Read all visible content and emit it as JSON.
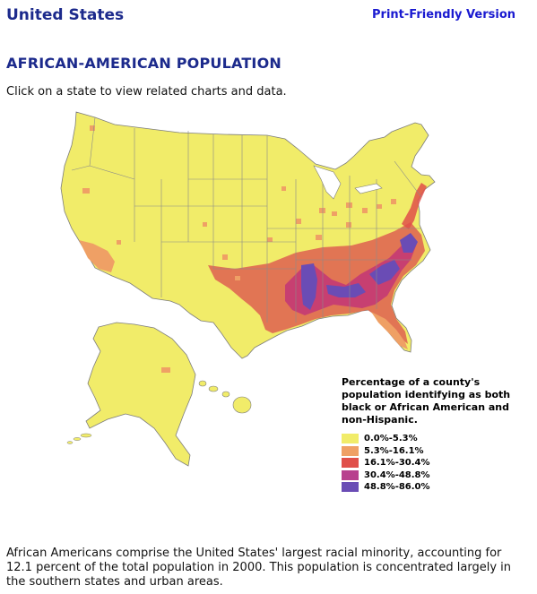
{
  "header": {
    "site_title": "United States",
    "print_link": "Print-Friendly Version"
  },
  "page": {
    "heading": "AFRICAN-AMERICAN POPULATION",
    "instruction": "Click on a state to view related charts and data."
  },
  "map": {
    "land_color": "#f1ec69",
    "border_color": "#7d7d7d",
    "regions": [
      {
        "name": "us-lower-48",
        "color": "#f1ec69"
      },
      {
        "name": "alaska",
        "color": "#f1ec69"
      },
      {
        "name": "hawaii",
        "color": "#f1ec69"
      },
      {
        "name": "southern-belt",
        "color": "#e06a52"
      },
      {
        "name": "black-belt",
        "color": "#c43a74"
      },
      {
        "name": "mississippi-delta",
        "color": "#6a4cb5"
      },
      {
        "name": "southern-california",
        "color": "#efa065"
      }
    ]
  },
  "legend": {
    "title": "Percentage of a county's population identifying as both black or African American and non-Hispanic.",
    "items": [
      {
        "label": "0.0%-5.3%",
        "color": "#f1ec69"
      },
      {
        "label": "5.3%-16.1%",
        "color": "#efa065"
      },
      {
        "label": "16.1%-30.4%",
        "color": "#e0504a"
      },
      {
        "label": "30.4%-48.8%",
        "color": "#b8418e"
      },
      {
        "label": "48.8%-86.0%",
        "color": "#6a4cb5"
      }
    ]
  },
  "footer": {
    "text": "African Americans comprise the United States' largest racial minority, accounting for 12.1 percent of the total population in 2000. This population is concentrated largely in the southern states and urban areas."
  }
}
